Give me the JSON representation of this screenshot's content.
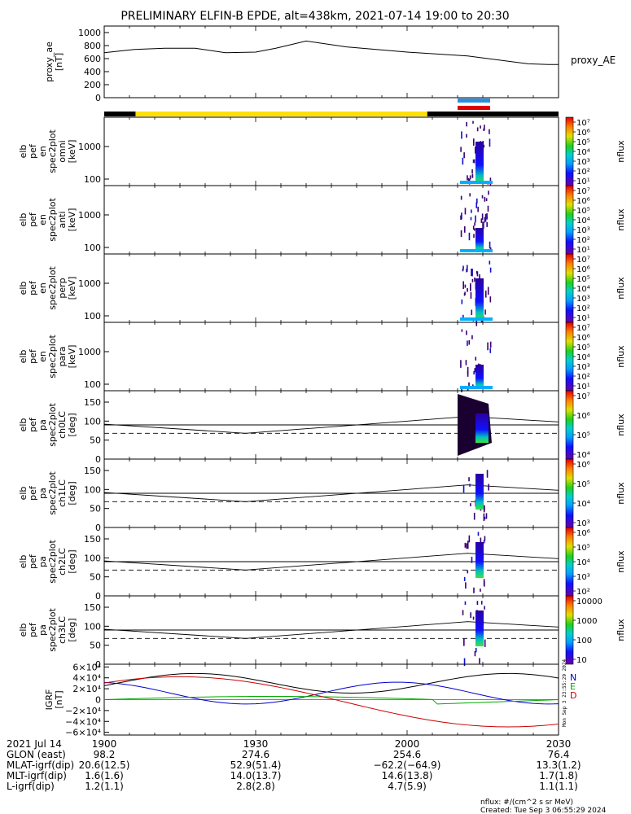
{
  "title": "PRELIMINARY ELFIN-B EPDE, alt=438km, 2021-07-14 19:00 to 20:30",
  "chart_data": [
    {
      "type": "line",
      "id": "proxy_ae",
      "ylabel_lines": [
        "proxy_ae",
        "[nT]"
      ],
      "legend": "proxy_AE",
      "yticks": [
        "1000",
        "800",
        "600",
        "400",
        "200",
        "0"
      ],
      "ylim": [
        0,
        1050
      ],
      "x_minutes": [
        0,
        6,
        12,
        18,
        24,
        30,
        34,
        40,
        48,
        60,
        72,
        84,
        88,
        90
      ],
      "values": [
        690,
        740,
        760,
        760,
        690,
        700,
        760,
        870,
        780,
        700,
        640,
        520,
        510,
        510
      ]
    },
    {
      "type": "heatmap",
      "id": "en_omni",
      "ylabel_lines": [
        "elb",
        "pef",
        "en",
        "spec2plot",
        "omni",
        "[keV]"
      ],
      "yticks": [
        "1000",
        "100"
      ],
      "colorbar_ticks": [
        "10⁷",
        "10⁶",
        "10⁵",
        "10⁴",
        "10³",
        "10²",
        "10¹"
      ],
      "colorbar_label": "nflux"
    },
    {
      "type": "heatmap",
      "id": "en_anti",
      "ylabel_lines": [
        "elb",
        "pef",
        "en",
        "spec2plot",
        "anti",
        "[keV]"
      ],
      "yticks": [
        "1000",
        "100"
      ],
      "colorbar_ticks": [
        "10⁷",
        "10⁶",
        "10⁵",
        "10⁴",
        "10³",
        "10²",
        "10¹"
      ],
      "colorbar_label": "nflux"
    },
    {
      "type": "heatmap",
      "id": "en_perp",
      "ylabel_lines": [
        "elb",
        "pef",
        "en",
        "spec2plot",
        "perp",
        "[keV]"
      ],
      "yticks": [
        "1000",
        "100"
      ],
      "colorbar_ticks": [
        "10⁷",
        "10⁶",
        "10⁵",
        "10⁴",
        "10³",
        "10²",
        "10¹"
      ],
      "colorbar_label": "nflux"
    },
    {
      "type": "heatmap",
      "id": "en_para",
      "ylabel_lines": [
        "elb",
        "pef",
        "en",
        "spec2plot",
        "para",
        "[keV]"
      ],
      "yticks": [
        "1000",
        "100"
      ],
      "colorbar_ticks": [
        "10⁷",
        "10⁶",
        "10⁵",
        "10⁴",
        "10³",
        "10²",
        "10¹"
      ],
      "colorbar_label": "nflux"
    },
    {
      "type": "heatmap",
      "id": "pa_ch0",
      "ylabel_lines": [
        "elb",
        "pef",
        "pa",
        "spec2plot",
        "ch0LC",
        "[deg]"
      ],
      "yticks": [
        "150",
        "100",
        "50",
        "0"
      ],
      "ylim": [
        0,
        180
      ],
      "colorbar_ticks": [
        "10⁷",
        "10⁶",
        "10⁵",
        "10⁴"
      ],
      "colorbar_label": "nflux"
    },
    {
      "type": "heatmap",
      "id": "pa_ch1",
      "ylabel_lines": [
        "elb",
        "pef",
        "pa",
        "spec2plot",
        "ch1LC",
        "[deg]"
      ],
      "yticks": [
        "150",
        "100",
        "50",
        "0"
      ],
      "ylim": [
        0,
        180
      ],
      "colorbar_ticks": [
        "10⁶",
        "10⁵",
        "10⁴",
        "10³"
      ],
      "colorbar_label": "nflux"
    },
    {
      "type": "heatmap",
      "id": "pa_ch2",
      "ylabel_lines": [
        "elb",
        "pef",
        "pa",
        "spec2plot",
        "ch2LC",
        "[deg]"
      ],
      "yticks": [
        "150",
        "100",
        "50",
        "0"
      ],
      "ylim": [
        0,
        180
      ],
      "colorbar_ticks": [
        "10⁶",
        "10⁵",
        "10⁴",
        "10³",
        "10²"
      ],
      "colorbar_label": "nflux"
    },
    {
      "type": "heatmap",
      "id": "pa_ch3",
      "ylabel_lines": [
        "elb",
        "pef",
        "pa",
        "spec2plot",
        "ch3LC",
        "[deg]"
      ],
      "yticks": [
        "150",
        "100",
        "50",
        "0"
      ],
      "ylim": [
        0,
        180
      ],
      "colorbar_ticks": [
        "10000",
        "1000",
        "100",
        "10"
      ],
      "colorbar_label": "nflux"
    },
    {
      "type": "line",
      "id": "igrf",
      "ylabel_lines": [
        "IGRF",
        "[nT]"
      ],
      "yticks": [
        "6×10⁴",
        "4×10⁴",
        "2×10⁴",
        "0",
        "−2×10⁴",
        "−4×10⁴",
        "−6×10⁴"
      ],
      "ylim": [
        -65000,
        65000
      ],
      "legend": [
        "N",
        "E",
        "D"
      ],
      "series_colors": {
        "total": "#000000",
        "N": "#0000cc",
        "E": "#00aa00",
        "D": "#cc0000"
      }
    }
  ],
  "side_stamp": "Mon Sep  3 23:55:29 2024",
  "xaxis": {
    "rows": [
      {
        "label": "2021 Jul 14",
        "values": [
          "1900",
          "1930",
          "2000",
          "2030"
        ]
      },
      {
        "label": "GLON (east)",
        "values": [
          "98.2",
          "274.6",
          "254.6",
          "76.4"
        ]
      },
      {
        "label": "MLAT-igrf(dip)",
        "values": [
          "20.6(12.5)",
          "52.9(51.4)",
          "−62.2(−64.9)",
          "13.3(1.2)"
        ]
      },
      {
        "label": "MLT-igrf(dip)",
        "values": [
          "1.6(1.6)",
          "14.0(13.7)",
          "14.6(13.8)",
          "1.7(1.8)"
        ]
      },
      {
        "label": "L-igrf(dip)",
        "values": [
          "1.2(1.1)",
          "2.8(2.8)",
          "4.7(5.9)",
          "1.1(1.1)"
        ]
      }
    ]
  },
  "footer": {
    "units": "nflux: #/(cm^2 s sr MeV)",
    "created": "Created: Tue Sep  3 06:55:29 2024"
  },
  "colors": {
    "bar_yellow": "#ffe000",
    "bar_black": "#000000",
    "bar_blue": "#2b8fe0",
    "bar_red": "#e00000"
  }
}
